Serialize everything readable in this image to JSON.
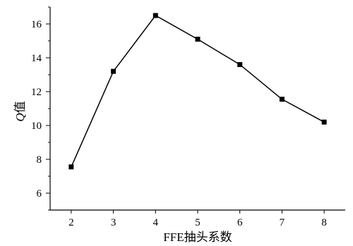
{
  "chart_data": {
    "type": "line",
    "title": "",
    "xlabel": "FFE抽头系数",
    "ylabel_symbol": "Q",
    "ylabel_suffix": "值",
    "x": [
      2,
      3,
      4,
      5,
      6,
      7,
      8
    ],
    "values": [
      7.55,
      13.2,
      16.5,
      15.1,
      13.6,
      11.55,
      10.2
    ],
    "xlim": [
      1.5,
      8.5
    ],
    "ylim": [
      5,
      17
    ],
    "xticks": [
      "2",
      "3",
      "4",
      "5",
      "6",
      "7",
      "8"
    ],
    "yticks": [
      "6",
      "8",
      "10",
      "12",
      "14",
      "16"
    ],
    "grid": false,
    "marker": "square",
    "line_color": "#000000"
  }
}
